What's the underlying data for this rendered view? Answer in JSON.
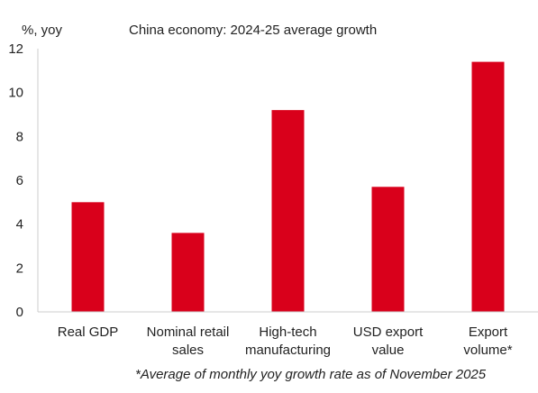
{
  "chart_data": {
    "type": "bar",
    "title": "China economy: 2024-25 average growth",
    "ylabel": "%, yoy",
    "xlabel": "",
    "categories": [
      [
        "Real GDP"
      ],
      [
        "Nominal retail",
        "sales"
      ],
      [
        "High-tech",
        "manufacturing"
      ],
      [
        "USD export",
        "value"
      ],
      [
        "Export",
        "volume*"
      ]
    ],
    "values": [
      5.0,
      3.6,
      9.2,
      5.7,
      11.4
    ],
    "ylim": [
      0,
      12
    ],
    "yticks": [
      "0",
      "2",
      "4",
      "6",
      "8",
      "10",
      "12"
    ],
    "grid": false,
    "legend": "none",
    "bar_color": "#d9001b",
    "footnote": "*Average of monthly yoy growth rate as of November 2025"
  }
}
